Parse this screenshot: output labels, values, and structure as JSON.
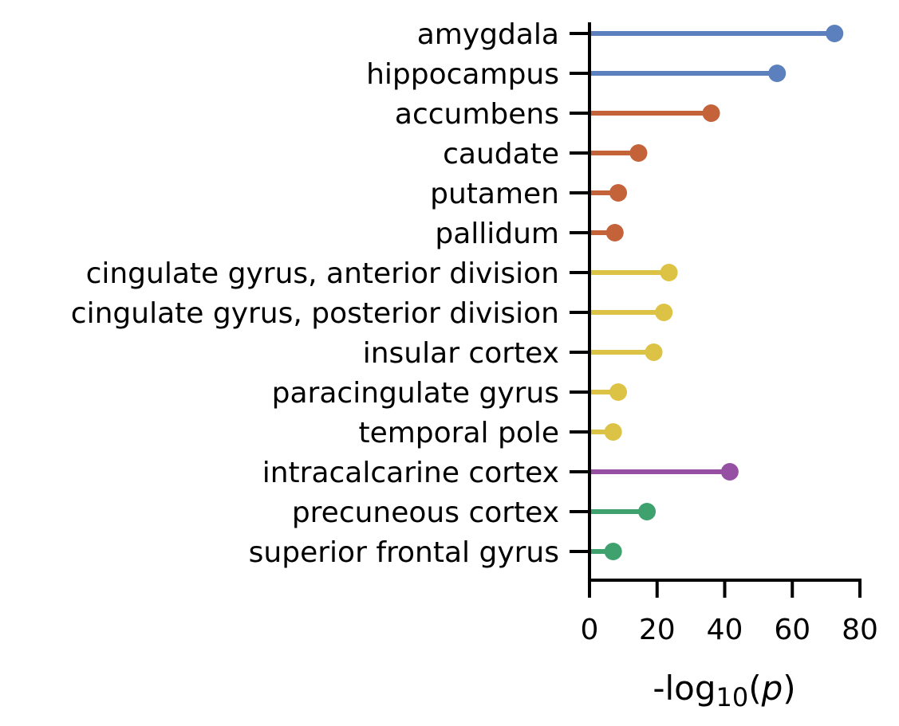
{
  "chart_data": {
    "type": "lollipop",
    "orientation": "horizontal",
    "xlabel": {
      "prefix": "-log",
      "subscript": "10",
      "open": "(",
      "var": "p",
      "close": ")"
    },
    "xlim": [
      0,
      80
    ],
    "xticks": [
      0,
      20,
      40,
      60,
      80
    ],
    "grid": false,
    "legend": "none",
    "categories": [
      "amygdala",
      "hippocampus",
      "accumbens",
      "caudate",
      "putamen",
      "pallidum",
      "cingulate gyrus, anterior division",
      "cingulate gyrus, posterior division",
      "insular cortex",
      "paracingulate gyrus",
      "temporal pole",
      "intracalcarine cortex",
      "precuneous cortex",
      "superior frontal gyrus"
    ],
    "values": [
      72.5,
      55.5,
      36,
      14.5,
      8.5,
      7.5,
      23.5,
      22,
      19,
      8.5,
      7,
      41.5,
      17,
      7
    ],
    "color_groups": [
      "blue",
      "blue",
      "orange",
      "orange",
      "orange",
      "orange",
      "yellow",
      "yellow",
      "yellow",
      "yellow",
      "yellow",
      "purple",
      "green",
      "green"
    ],
    "colors": {
      "blue": "#5b80bd",
      "orange": "#c4623a",
      "yellow": "#dcc245",
      "purple": "#9550a4",
      "green": "#3fa26e"
    }
  }
}
